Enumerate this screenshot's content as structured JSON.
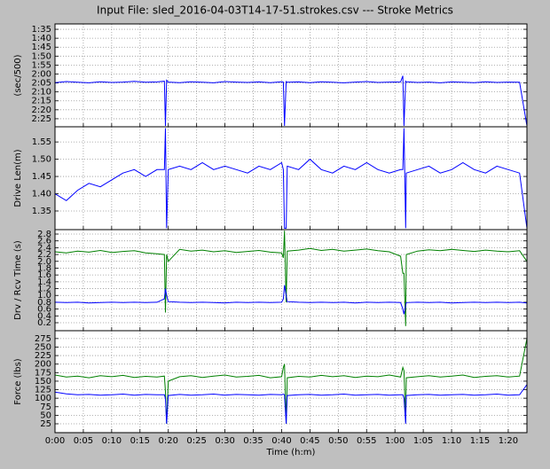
{
  "title": "Input File:  sled_2016-04-03T14-17-51.strokes.csv --- Stroke Metrics",
  "chart_data": [
    {
      "type": "line",
      "ylabel": "(sec/500)",
      "ylim": [
        149.5,
        92
      ],
      "yticks": [
        {
          "value": 95,
          "label": "1:35"
        },
        {
          "value": 100,
          "label": "1:40"
        },
        {
          "value": 105,
          "label": "1:45"
        },
        {
          "value": 110,
          "label": "1:50"
        },
        {
          "value": 115,
          "label": "1:55"
        },
        {
          "value": 120,
          "label": "2:00"
        },
        {
          "value": 125,
          "label": "2:05"
        },
        {
          "value": 130,
          "label": "2:10"
        },
        {
          "value": 135,
          "label": "2:15"
        },
        {
          "value": 140,
          "label": "2:20"
        },
        {
          "value": 145,
          "label": "2:25"
        }
      ],
      "grid": true,
      "x": [
        0,
        2,
        4,
        6,
        8,
        10,
        12,
        14,
        16,
        18,
        19.3,
        19.5,
        19.7,
        20,
        22,
        24,
        26,
        28,
        30,
        32,
        34,
        36,
        38,
        40,
        40.3,
        40.5,
        40.8,
        41,
        43,
        45,
        47,
        49,
        51,
        53,
        55,
        57,
        59,
        61,
        61.4,
        61.6,
        61.9,
        62,
        64,
        66,
        68,
        70,
        72,
        74,
        76,
        78,
        80,
        82,
        83.3
      ],
      "series": [
        {
          "color": "#0000ff",
          "values": [
            124.8,
            124.2,
            124.6,
            124.9,
            124.3,
            124.7,
            124.5,
            124.1,
            124.6,
            124.4,
            124.0,
            149,
            123.5,
            124.5,
            124.8,
            124.3,
            124.6,
            124.9,
            124.2,
            124.5,
            124.7,
            124.4,
            124.8,
            124.3,
            124.5,
            149,
            124.2,
            124.6,
            124.4,
            124.8,
            124.3,
            124.6,
            124.9,
            124.5,
            124.2,
            124.7,
            124.5,
            124.4,
            121.0,
            149,
            124.0,
            124.3,
            124.7,
            124.5,
            124.9,
            124.4,
            124.6,
            124.8,
            124.3,
            124.7,
            124.5,
            124.6,
            149
          ]
        }
      ]
    },
    {
      "type": "line",
      "ylabel": "Drive Len(m)",
      "ylim": [
        1.296,
        1.594
      ],
      "yticks": [
        1.35,
        {
          "value": 1.4,
          "label": "1.40"
        },
        1.45,
        {
          "value": 1.5,
          "label": "1.50"
        },
        1.55
      ],
      "grid": true,
      "x": [
        0,
        2,
        4,
        6,
        8,
        10,
        12,
        14,
        16,
        18,
        19.3,
        19.5,
        19.7,
        20,
        22,
        24,
        26,
        28,
        30,
        32,
        34,
        36,
        38,
        40,
        40.3,
        40.5,
        40.8,
        41,
        43,
        45,
        47,
        49,
        51,
        53,
        55,
        57,
        59,
        61,
        61.4,
        61.6,
        61.9,
        62,
        64,
        66,
        68,
        70,
        72,
        74,
        76,
        78,
        80,
        82,
        83.3
      ],
      "series": [
        {
          "color": "#0000ff",
          "values": [
            1.4,
            1.38,
            1.41,
            1.43,
            1.42,
            1.44,
            1.46,
            1.47,
            1.45,
            1.47,
            1.47,
            1.59,
            1.3,
            1.47,
            1.48,
            1.47,
            1.49,
            1.47,
            1.48,
            1.47,
            1.46,
            1.48,
            1.47,
            1.49,
            1.47,
            1.3,
            1.3,
            1.48,
            1.47,
            1.5,
            1.47,
            1.46,
            1.48,
            1.47,
            1.49,
            1.47,
            1.46,
            1.47,
            1.47,
            1.59,
            1.3,
            1.46,
            1.47,
            1.48,
            1.46,
            1.47,
            1.49,
            1.47,
            1.46,
            1.48,
            1.47,
            1.46,
            1.3
          ]
        }
      ]
    },
    {
      "type": "line",
      "ylabel": "Drv / Rcv Time (s)",
      "ylim": [
        -0.034,
        2.93
      ],
      "yticks": [
        0.2,
        0.4,
        0.6,
        0.8,
        {
          "value": 1,
          "label": "1.0"
        },
        1.2,
        1.4,
        1.6,
        1.8,
        {
          "value": 2,
          "label": "2.0"
        },
        2.2,
        2.4,
        2.6,
        2.8
      ],
      "grid": true,
      "x": [
        0,
        2,
        4,
        6,
        8,
        10,
        12,
        14,
        16,
        18,
        19.3,
        19.5,
        19.7,
        20,
        22,
        24,
        26,
        28,
        30,
        32,
        34,
        36,
        38,
        40,
        40.3,
        40.5,
        40.8,
        41,
        43,
        45,
        47,
        49,
        51,
        53,
        55,
        57,
        59,
        61,
        61.4,
        61.6,
        61.9,
        62,
        64,
        66,
        68,
        70,
        72,
        74,
        76,
        78,
        80,
        82,
        83.3
      ],
      "series": [
        {
          "color": "#008000",
          "values": [
            2.28,
            2.25,
            2.3,
            2.27,
            2.32,
            2.26,
            2.29,
            2.31,
            2.25,
            2.22,
            2.2,
            0.5,
            2.2,
            2.0,
            2.35,
            2.3,
            2.33,
            2.28,
            2.31,
            2.26,
            2.29,
            2.32,
            2.27,
            2.25,
            2.1,
            2.9,
            0.8,
            2.3,
            2.33,
            2.38,
            2.32,
            2.35,
            2.3,
            2.33,
            2.36,
            2.31,
            2.28,
            2.15,
            1.65,
            1.65,
            0.1,
            2.2,
            2.3,
            2.34,
            2.31,
            2.35,
            2.32,
            2.29,
            2.33,
            2.3,
            2.28,
            2.31,
            2.0
          ]
        },
        {
          "color": "#0000ff",
          "values": [
            0.8,
            0.79,
            0.8,
            0.78,
            0.79,
            0.8,
            0.79,
            0.8,
            0.79,
            0.8,
            0.9,
            1.2,
            1.0,
            0.82,
            0.8,
            0.79,
            0.8,
            0.79,
            0.78,
            0.8,
            0.79,
            0.8,
            0.79,
            0.8,
            0.9,
            1.3,
            1.0,
            0.82,
            0.8,
            0.79,
            0.8,
            0.79,
            0.8,
            0.78,
            0.8,
            0.79,
            0.8,
            0.79,
            0.6,
            0.45,
            0.7,
            0.79,
            0.8,
            0.79,
            0.8,
            0.78,
            0.79,
            0.8,
            0.79,
            0.8,
            0.79,
            0.8,
            0.78
          ]
        }
      ]
    },
    {
      "type": "line",
      "ylabel": "Force (lbs)",
      "xlabel": "Time (h:m)",
      "ylim": [
        -1,
        298
      ],
      "yticks": [
        25,
        50,
        75,
        100,
        125,
        150,
        175,
        200,
        225,
        250,
        275
      ],
      "xlim": [
        0,
        83.3
      ],
      "xticks": [
        {
          "value": 0,
          "label": "0:00"
        },
        {
          "value": 5,
          "label": "0:05"
        },
        {
          "value": 10,
          "label": "0:10"
        },
        {
          "value": 15,
          "label": "0:15"
        },
        {
          "value": 20,
          "label": "0:20"
        },
        {
          "value": 25,
          "label": "0:25"
        },
        {
          "value": 30,
          "label": "0:30"
        },
        {
          "value": 35,
          "label": "0:35"
        },
        {
          "value": 40,
          "label": "0:40"
        },
        {
          "value": 45,
          "label": "0:45"
        },
        {
          "value": 50,
          "label": "0:50"
        },
        {
          "value": 55,
          "label": "0:55"
        },
        {
          "value": 60,
          "label": "1:00"
        },
        {
          "value": 65,
          "label": "1:05"
        },
        {
          "value": 70,
          "label": "1:10"
        },
        {
          "value": 75,
          "label": "1:15"
        },
        {
          "value": 80,
          "label": "1:20"
        }
      ],
      "grid": true,
      "x": [
        0,
        2,
        4,
        6,
        8,
        10,
        12,
        14,
        16,
        18,
        19.3,
        19.5,
        19.7,
        20,
        22,
        24,
        26,
        28,
        30,
        32,
        34,
        36,
        38,
        40,
        40.3,
        40.5,
        40.8,
        41,
        43,
        45,
        47,
        49,
        51,
        53,
        55,
        57,
        59,
        61,
        61.4,
        61.6,
        61.9,
        62,
        64,
        66,
        68,
        70,
        72,
        74,
        76,
        78,
        80,
        82,
        83.3
      ],
      "series": [
        {
          "color": "#008000",
          "values": [
            168,
            162,
            165,
            160,
            166,
            163,
            167,
            161,
            164,
            162,
            165,
            120,
            25,
            150,
            163,
            166,
            161,
            165,
            168,
            162,
            164,
            167,
            160,
            163,
            190,
            200,
            25,
            160,
            164,
            162,
            167,
            163,
            166,
            161,
            165,
            163,
            168,
            162,
            190,
            180,
            30,
            160,
            163,
            166,
            162,
            165,
            168,
            161,
            164,
            166,
            162,
            165,
            275
          ]
        },
        {
          "color": "#0000ff",
          "values": [
            118,
            113,
            110,
            111,
            109,
            110,
            112,
            109,
            111,
            110,
            110,
            100,
            25,
            108,
            111,
            109,
            110,
            112,
            109,
            111,
            110,
            109,
            111,
            110,
            112,
            110,
            25,
            108,
            110,
            111,
            109,
            110,
            112,
            109,
            110,
            111,
            109,
            110,
            110,
            100,
            25,
            108,
            110,
            111,
            109,
            110,
            111,
            109,
            110,
            112,
            109,
            110,
            140
          ]
        }
      ]
    }
  ]
}
